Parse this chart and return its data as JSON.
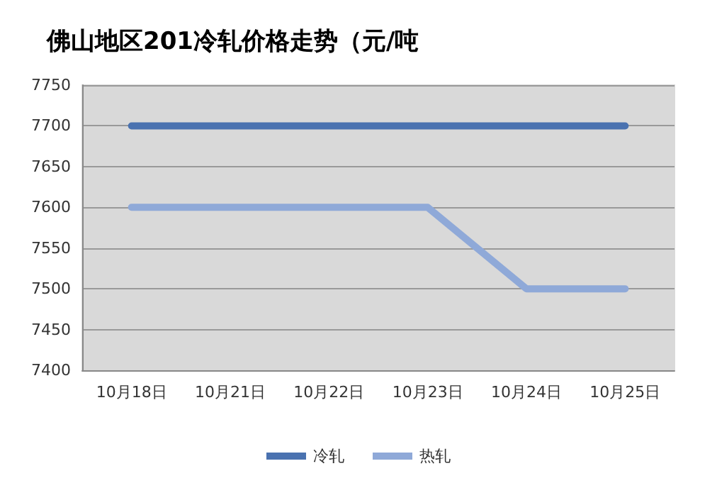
{
  "chart_data": {
    "type": "line",
    "title": "佛山地区201冷轧价格走势（元/吨",
    "categories": [
      "10月18日",
      "10月21日",
      "10月22日",
      "10月23日",
      "10月24日",
      "10月25日"
    ],
    "series": [
      {
        "name": "冷轧",
        "color": "#4a72b0",
        "values": [
          7700,
          7700,
          7700,
          7700,
          7700,
          7700
        ]
      },
      {
        "name": "热轧",
        "color": "#8fa9d8",
        "values": [
          7600,
          7600,
          7600,
          7600,
          7500,
          7500
        ]
      }
    ],
    "ylim": [
      7400,
      7750
    ],
    "yticks": [
      7400,
      7450,
      7500,
      7550,
      7600,
      7650,
      7700,
      7750
    ],
    "grid": "y",
    "legend": "bottom",
    "marker": "none",
    "line_style": "solid"
  }
}
